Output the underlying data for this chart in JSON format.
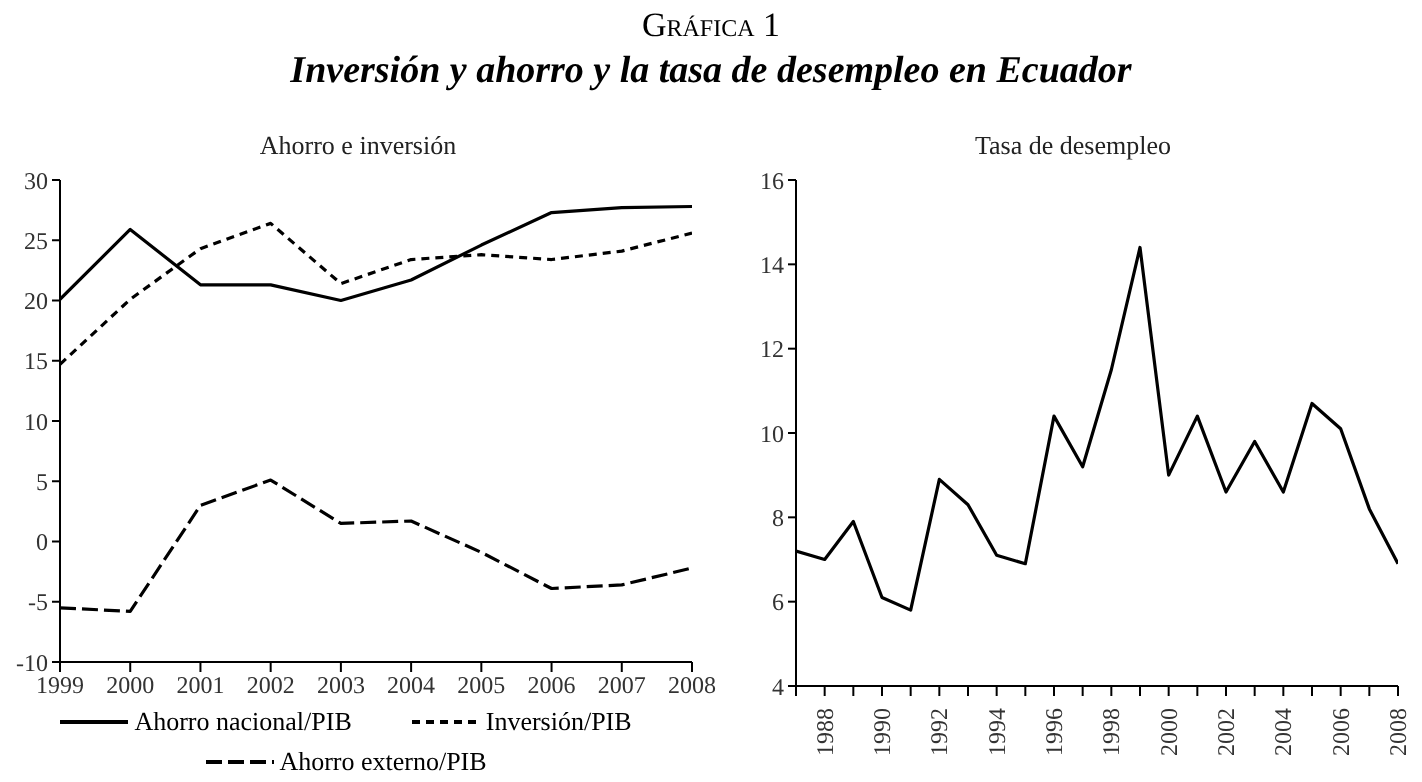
{
  "chart_data": [
    {
      "type": "other",
      "title": "Gráfica 1",
      "subtitle": "Inversión y ahorro y la tasa de desempleo en Ecuador"
    },
    {
      "type": "line",
      "title": "Ahorro e inversión",
      "x": [
        1999,
        2000,
        2001,
        2002,
        2003,
        2004,
        2005,
        2006,
        2007,
        2008
      ],
      "xlim": [
        1999,
        2008
      ],
      "xticks": [
        1999,
        2000,
        2001,
        2002,
        2003,
        2004,
        2005,
        2006,
        2007,
        2008
      ],
      "ylim": [
        -10,
        30
      ],
      "yticks": [
        -10,
        -5,
        0,
        5,
        10,
        15,
        20,
        25,
        30
      ],
      "marker": "none",
      "legend": "bottom",
      "series": [
        {
          "name": "Ahorro nacional/PIB",
          "color": "#000000",
          "line_style": "solid",
          "values": [
            20.1,
            25.9,
            21.3,
            21.3,
            20.0,
            21.7,
            24.6,
            27.3,
            27.7,
            27.8
          ]
        },
        {
          "name": "Inversión/PIB",
          "color": "#000000",
          "line_style": "dashed",
          "values": [
            14.7,
            20.1,
            24.3,
            26.4,
            21.4,
            23.4,
            23.8,
            23.4,
            24.1,
            25.6
          ]
        },
        {
          "name": "Ahorro externo/PIB",
          "color": "#000000",
          "line_style": "dashed",
          "values": [
            -5.5,
            -5.8,
            3.0,
            5.1,
            1.5,
            1.7,
            -0.9,
            -3.9,
            -3.6,
            -2.2
          ]
        }
      ]
    },
    {
      "type": "line",
      "title": "Tasa de desempleo",
      "x": [
        1987,
        1988,
        1989,
        1990,
        1991,
        1992,
        1993,
        1994,
        1995,
        1996,
        1997,
        1998,
        1999,
        2000,
        2001,
        2002,
        2003,
        2004,
        2005,
        2006,
        2007,
        2008
      ],
      "xlim": [
        1987,
        2008
      ],
      "xticks": [
        {
          "value": 1987,
          "label": null
        },
        1988,
        {
          "value": 1989,
          "label": null
        },
        1990,
        {
          "value": 1991,
          "label": null
        },
        1992,
        {
          "value": 1993,
          "label": null
        },
        1994,
        {
          "value": 1995,
          "label": null
        },
        1996,
        {
          "value": 1997,
          "label": null
        },
        1998,
        {
          "value": 1999,
          "label": null
        },
        2000,
        {
          "value": 2001,
          "label": null
        },
        2002,
        {
          "value": 2003,
          "label": null
        },
        2004,
        {
          "value": 2005,
          "label": null
        },
        2006,
        {
          "value": 2007,
          "label": null
        },
        2008
      ],
      "ylim": [
        4,
        16
      ],
      "yticks": [
        4,
        6,
        8,
        10,
        12,
        14,
        16
      ],
      "marker": "none",
      "series": [
        {
          "color": "#000000",
          "line_style": "solid",
          "values": [
            7.2,
            7.0,
            7.9,
            6.1,
            5.8,
            8.9,
            8.3,
            7.1,
            6.9,
            10.4,
            9.2,
            11.5,
            14.4,
            9.0,
            10.4,
            8.6,
            9.8,
            8.6,
            10.7,
            10.1,
            8.2,
            6.9
          ]
        }
      ]
    }
  ]
}
